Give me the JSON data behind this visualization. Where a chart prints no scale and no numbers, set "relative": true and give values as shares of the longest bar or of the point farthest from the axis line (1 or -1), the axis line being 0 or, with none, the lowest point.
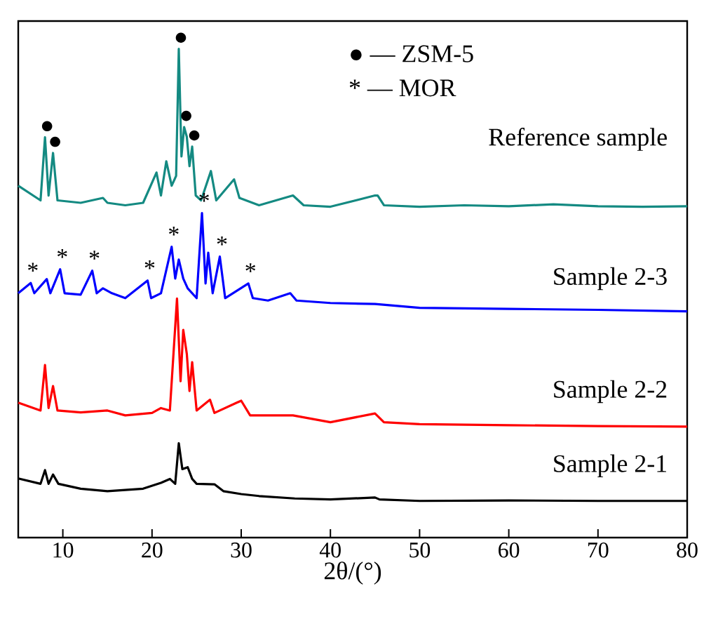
{
  "chart_data": {
    "type": "line",
    "relative": true,
    "xlabel": "2θ/(°)",
    "xlim": [
      5,
      80
    ],
    "xticks": [
      10,
      20,
      30,
      40,
      50,
      60,
      70,
      80
    ],
    "tick_labels": "x",
    "line_style": "solid",
    "series": [
      {
        "name": "Reference sample",
        "color": "#148a82",
        "x": [
          5,
          7.5,
          8.0,
          8.4,
          8.9,
          9.4,
          12,
          14.5,
          15,
          17,
          19,
          20.5,
          21,
          21.6,
          22.2,
          22.7,
          23.0,
          23.3,
          23.6,
          23.9,
          24.2,
          24.5,
          24.9,
          25.5,
          26.6,
          27.2,
          29.2,
          29.8,
          32,
          35.8,
          37,
          40,
          45.0,
          45.3,
          46,
          50,
          55,
          60,
          65,
          70,
          75,
          80
        ],
        "values": [
          0.72,
          0.69,
          0.819,
          0.7,
          0.787,
          0.69,
          0.685,
          0.695,
          0.685,
          0.68,
          0.685,
          0.747,
          0.7,
          0.77,
          0.72,
          0.74,
          1.0,
          0.78,
          0.84,
          0.82,
          0.76,
          0.8,
          0.7,
          0.69,
          0.75,
          0.69,
          0.733,
          0.695,
          0.68,
          0.7,
          0.68,
          0.677,
          0.7,
          0.7,
          0.68,
          0.677,
          0.68,
          0.678,
          0.682,
          0.678,
          0.677,
          0.678
        ]
      },
      {
        "name": "Sample 2-3",
        "color": "#0000ff",
        "x": [
          5,
          6.4,
          6.8,
          8.2,
          8.6,
          9.7,
          10.2,
          12,
          13.3,
          13.8,
          14.5,
          15.5,
          17,
          19.5,
          19.9,
          21,
          22.2,
          22.6,
          23.0,
          23.5,
          24,
          25.0,
          25.6,
          26.0,
          26.3,
          26.8,
          27.6,
          28.2,
          30.8,
          31.3,
          33,
          35.5,
          36.2,
          40,
          45,
          50,
          60,
          70,
          80
        ],
        "values": [
          0.5,
          0.521,
          0.5,
          0.529,
          0.5,
          0.549,
          0.5,
          0.497,
          0.546,
          0.5,
          0.51,
          0.5,
          0.49,
          0.526,
          0.49,
          0.5,
          0.595,
          0.53,
          0.569,
          0.53,
          0.51,
          0.49,
          0.664,
          0.52,
          0.583,
          0.5,
          0.575,
          0.49,
          0.52,
          0.49,
          0.485,
          0.5,
          0.485,
          0.48,
          0.478,
          0.47,
          0.468,
          0.466,
          0.463
        ]
      },
      {
        "name": "Sample 2-2",
        "color": "#ff0000",
        "x": [
          5,
          7.5,
          8.0,
          8.4,
          8.9,
          9.4,
          12,
          15,
          17,
          20,
          21,
          22.0,
          22.8,
          23.2,
          23.5,
          23.9,
          24.2,
          24.5,
          25,
          26.5,
          27,
          29.5,
          30,
          31,
          35.8,
          40,
          45,
          46,
          50,
          60,
          70,
          80
        ],
        "values": [
          0.276,
          0.26,
          0.353,
          0.265,
          0.31,
          0.26,
          0.256,
          0.26,
          0.25,
          0.255,
          0.265,
          0.26,
          0.489,
          0.32,
          0.425,
          0.376,
          0.3,
          0.359,
          0.26,
          0.282,
          0.255,
          0.276,
          0.28,
          0.25,
          0.25,
          0.236,
          0.254,
          0.236,
          0.232,
          0.23,
          0.228,
          0.227
        ]
      },
      {
        "name": "Sample 2-1",
        "color": "#000000",
        "x": [
          5,
          7.5,
          8.0,
          8.4,
          8.9,
          9.5,
          12,
          15,
          19,
          21,
          22,
          22.6,
          23.0,
          23.4,
          24,
          24.5,
          25,
          27,
          28,
          30,
          32,
          36,
          40,
          45,
          45.5,
          50,
          60,
          70,
          80
        ],
        "values": [
          0.121,
          0.11,
          0.138,
          0.11,
          0.129,
          0.11,
          0.1,
          0.095,
          0.1,
          0.112,
          0.12,
          0.11,
          0.193,
          0.14,
          0.144,
          0.12,
          0.11,
          0.109,
          0.095,
          0.089,
          0.085,
          0.08,
          0.078,
          0.082,
          0.078,
          0.075,
          0.076,
          0.075,
          0.075
        ]
      }
    ],
    "annotations": [
      "● — ZSM-5",
      "* — MOR",
      {
        "text": "●",
        "x": 8.0,
        "y": 0.819
      },
      {
        "text": "●",
        "x": 8.9,
        "y": 0.787
      },
      {
        "text": "●",
        "x": 23.0,
        "y": 1.0
      },
      {
        "text": "●",
        "x": 23.6,
        "y": 0.84
      },
      {
        "text": "●",
        "x": 24.5,
        "y": 0.8
      },
      {
        "text": "*",
        "x": 6.4,
        "y": 0.521
      },
      {
        "text": "*",
        "x": 9.7,
        "y": 0.549
      },
      {
        "text": "*",
        "x": 13.3,
        "y": 0.546
      },
      {
        "text": "*",
        "x": 19.5,
        "y": 0.526
      },
      {
        "text": "*",
        "x": 22.2,
        "y": 0.595
      },
      {
        "text": "*",
        "x": 25.6,
        "y": 0.664
      },
      {
        "text": "*",
        "x": 27.6,
        "y": 0.575
      },
      {
        "text": "*",
        "x": 30.8,
        "y": 0.52
      }
    ]
  }
}
